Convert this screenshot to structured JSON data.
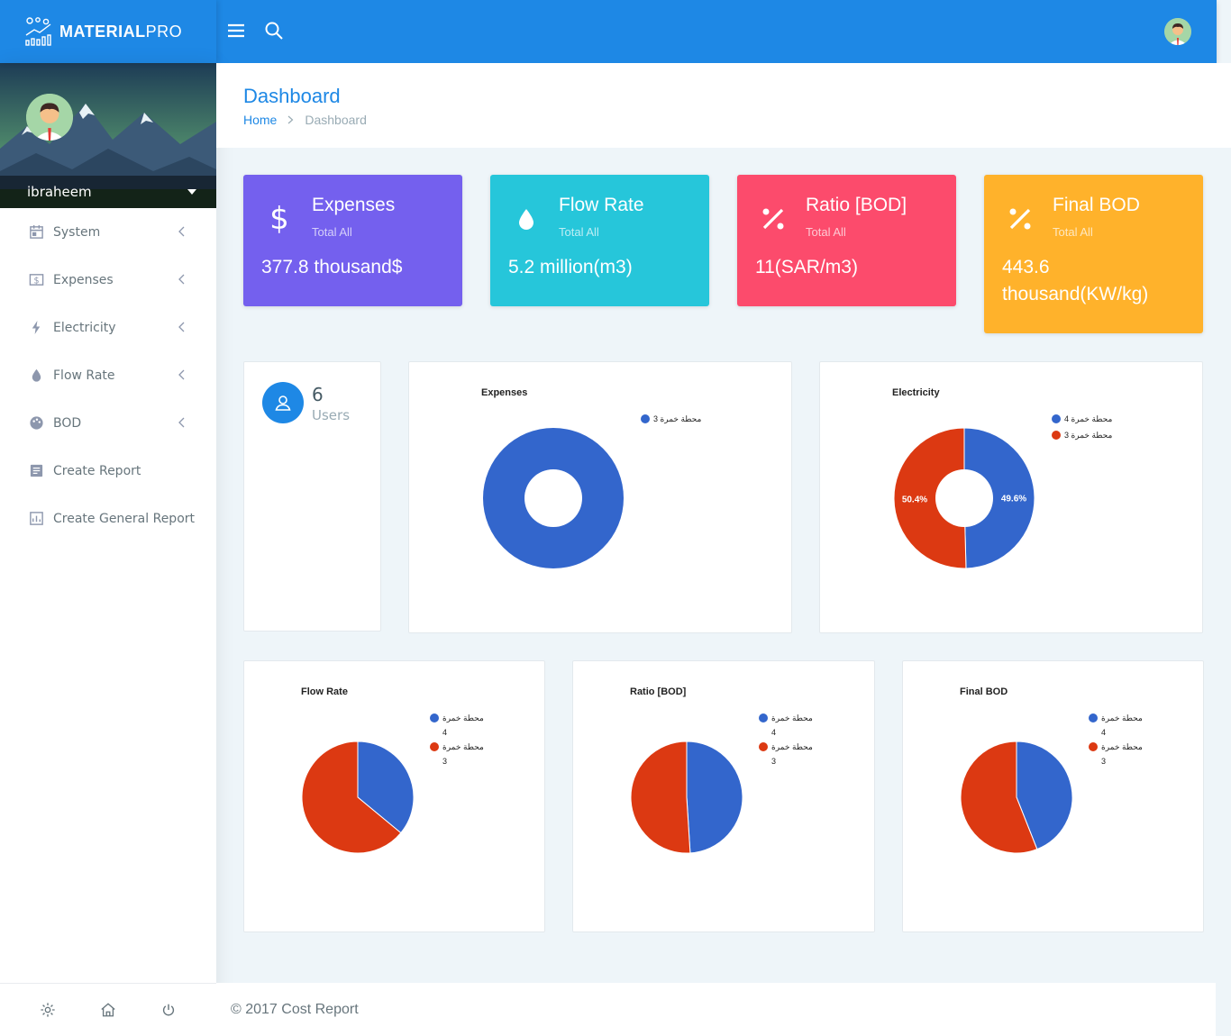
{
  "brand": {
    "name_bold": "MATERIAL",
    "name_light": "PRO"
  },
  "user": {
    "name": "ibraheem"
  },
  "nav": {
    "items": [
      {
        "label": "System",
        "icon": "calendar-icon",
        "chevron": true
      },
      {
        "label": "Expenses",
        "icon": "dollar-box-icon",
        "chevron": true
      },
      {
        "label": "Electricity",
        "icon": "flash-icon",
        "chevron": true
      },
      {
        "label": "Flow Rate",
        "icon": "water-drop-icon",
        "chevron": true
      },
      {
        "label": "BOD",
        "icon": "palette-icon",
        "chevron": true
      },
      {
        "label": "Create Report",
        "icon": "report-icon",
        "chevron": false
      },
      {
        "label": "Create General Report",
        "icon": "chart-report-icon",
        "chevron": false
      }
    ]
  },
  "page": {
    "title": "Dashboard",
    "breadcrumb": {
      "home": "Home",
      "current": "Dashboard"
    }
  },
  "stats": [
    {
      "title": "Expenses",
      "subtitle": "Total All",
      "value": "377.8 thousand$",
      "color": "#7460ee",
      "icon": "dollar-icon"
    },
    {
      "title": "Flow Rate",
      "subtitle": "Total All",
      "value": "5.2 million(m3)",
      "color": "#26c6da",
      "icon": "water-drop-icon"
    },
    {
      "title": "Ratio [BOD]",
      "subtitle": "Total All",
      "value": "11(SAR/m3)",
      "color": "#fc4b6c",
      "icon": "percent-icon"
    },
    {
      "title": "Final BOD",
      "subtitle": "Total All",
      "value": "443.6 thousand(KW/kg)",
      "color": "#ffb22b",
      "icon": "percent-icon"
    }
  ],
  "users": {
    "count": "6",
    "label": "Users"
  },
  "footer": {
    "text": "© 2017 Cost Report"
  },
  "colors": {
    "blue": "#3366cc",
    "red": "#dc3912",
    "primary": "#1e88e5"
  },
  "chart_data": [
    {
      "type": "pie",
      "title": "Expenses",
      "donut": true,
      "legend_position": "right",
      "series": [
        {
          "name": "محطة خمرة 3",
          "values": [
            100
          ]
        }
      ]
    },
    {
      "type": "pie",
      "title": "Electricity",
      "donut": true,
      "legend_position": "right",
      "categories": [
        "محطة خمرة 4",
        "محطة خمرة 3"
      ],
      "values": [
        49.6,
        50.4
      ],
      "value_labels": [
        "49.6%",
        "50.4%"
      ]
    },
    {
      "type": "pie",
      "title": "Flow Rate",
      "donut": false,
      "legend_position": "right",
      "categories": [
        "محطة خمرة 4",
        "محطة خمرة 3"
      ],
      "values": [
        36,
        64
      ]
    },
    {
      "type": "pie",
      "title": "Ratio [BOD]",
      "donut": false,
      "legend_position": "right",
      "categories": [
        "محطة خمرة 4",
        "محطة خمرة 3"
      ],
      "values": [
        49,
        51
      ]
    },
    {
      "type": "pie",
      "title": "Final BOD",
      "donut": false,
      "legend_position": "right",
      "categories": [
        "محطة خمرة 4",
        "محطة خمرة 3"
      ],
      "values": [
        44,
        56
      ]
    }
  ]
}
